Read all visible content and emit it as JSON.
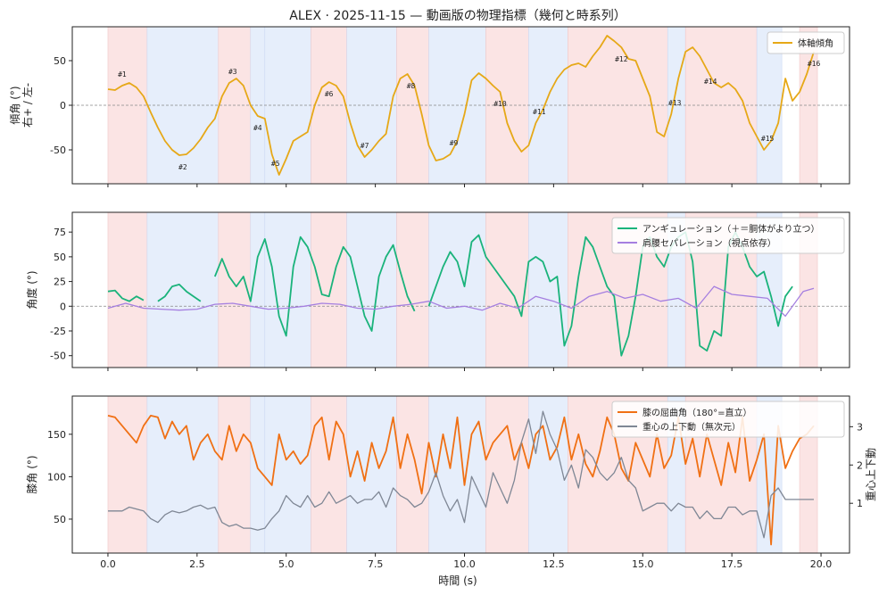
{
  "title": "ALEX · 2025-11-15 — 動画版の物理指標（幾何と時系列）",
  "xlabel": "時間 (s)",
  "colors": {
    "tilt": "#e6a817",
    "angulation": "#1ab37b",
    "separation": "#a57fe0",
    "knee": "#f07014",
    "com": "#7f8795",
    "zero": "#888888",
    "band_red": "#fbe4e4",
    "band_blue": "#e6eefb"
  },
  "chart_data": [
    {
      "type": "line",
      "ylabel": "傾角 (°)\n右+ / 左-",
      "ylim": [
        -88,
        88
      ],
      "yticks": [
        -50,
        0,
        50
      ],
      "series": [
        {
          "name": "体軸傾角",
          "x": [
            0.0,
            0.2,
            0.4,
            0.6,
            0.8,
            1.0,
            1.2,
            1.4,
            1.6,
            1.8,
            2.0,
            2.2,
            2.4,
            2.6,
            2.8,
            3.0,
            3.2,
            3.4,
            3.6,
            3.8,
            4.0,
            4.2,
            4.4,
            4.6,
            4.8,
            5.0,
            5.2,
            5.4,
            5.6,
            5.8,
            6.0,
            6.2,
            6.4,
            6.6,
            6.8,
            7.0,
            7.2,
            7.4,
            7.6,
            7.8,
            8.0,
            8.2,
            8.4,
            8.6,
            8.8,
            9.0,
            9.2,
            9.4,
            9.6,
            9.8,
            10.0,
            10.2,
            10.4,
            10.6,
            10.8,
            11.0,
            11.2,
            11.4,
            11.6,
            11.8,
            12.0,
            12.2,
            12.4,
            12.6,
            12.8,
            13.0,
            13.2,
            13.4,
            13.6,
            13.8,
            14.0,
            14.2,
            14.4,
            14.6,
            14.8,
            15.0,
            15.2,
            15.4,
            15.6,
            15.8,
            16.0,
            16.2,
            16.4,
            16.6,
            16.8,
            17.0,
            17.2,
            17.4,
            17.6,
            17.8,
            18.0,
            18.2,
            18.4,
            18.6,
            18.8,
            19.0,
            19.2,
            19.4,
            19.6,
            19.8
          ],
          "y": [
            18,
            17,
            22,
            25,
            20,
            10,
            -8,
            -25,
            -40,
            -50,
            -56,
            -55,
            -48,
            -38,
            -25,
            -15,
            10,
            25,
            30,
            22,
            0,
            -12,
            -15,
            -55,
            -78,
            -60,
            -40,
            -35,
            -30,
            0,
            20,
            26,
            22,
            10,
            -20,
            -45,
            -58,
            -50,
            -40,
            -32,
            10,
            30,
            35,
            22,
            -10,
            -45,
            -62,
            -60,
            -55,
            -40,
            -10,
            28,
            36,
            30,
            22,
            15,
            -20,
            -40,
            -52,
            -45,
            -20,
            -5,
            15,
            30,
            40,
            45,
            47,
            43,
            55,
            65,
            78,
            72,
            65,
            52,
            50,
            30,
            10,
            -30,
            -35,
            -10,
            30,
            60,
            65,
            55,
            40,
            25,
            20,
            25,
            18,
            5,
            -20,
            -35,
            -50,
            -40,
            -20,
            30,
            5,
            15,
            35,
            60
          ]
        },
        {
          "name": "",
          "x": [
            0,
            20
          ],
          "y": [
            0,
            0
          ]
        }
      ],
      "legend": "top-right",
      "annotations": [
        "#1",
        "#2",
        "#3",
        "#4",
        "#5",
        "#6",
        "#7",
        "#8",
        "#9",
        "#10",
        "#11",
        "#12",
        "#13",
        "#14",
        "#15",
        "#16"
      ]
    },
    {
      "type": "line",
      "ylabel": "角度 (°)",
      "ylim": [
        -62,
        95
      ],
      "yticks": [
        -50,
        -25,
        0,
        25,
        50,
        75
      ],
      "series": [
        {
          "name": "アンギュレーション（＋＝胴体がより立つ）",
          "x": [
            0.0,
            0.2,
            0.4,
            0.6,
            0.8,
            1.0,
            1.2,
            1.4,
            1.6,
            1.8,
            2.0,
            2.2,
            2.4,
            2.6,
            2.8,
            3.0,
            3.2,
            3.4,
            3.6,
            3.8,
            4.0,
            4.2,
            4.4,
            4.6,
            4.8,
            5.0,
            5.2,
            5.4,
            5.6,
            5.8,
            6.0,
            6.2,
            6.4,
            6.6,
            6.8,
            7.0,
            7.2,
            7.4,
            7.6,
            7.8,
            8.0,
            8.2,
            8.4,
            8.6,
            8.8,
            9.0,
            9.2,
            9.4,
            9.6,
            9.8,
            10.0,
            10.2,
            10.4,
            10.6,
            10.8,
            11.0,
            11.2,
            11.4,
            11.6,
            11.8,
            12.0,
            12.2,
            12.4,
            12.6,
            12.8,
            13.0,
            13.2,
            13.4,
            13.6,
            13.8,
            14.0,
            14.2,
            14.4,
            14.6,
            14.8,
            15.0,
            15.2,
            15.4,
            15.6,
            15.8,
            16.0,
            16.2,
            16.4,
            16.6,
            16.8,
            17.0,
            17.2,
            17.4,
            17.6,
            17.8,
            18.0,
            18.2,
            18.4,
            18.6,
            18.8,
            19.0,
            19.2,
            19.4,
            19.6,
            19.8
          ],
          "y": [
            15,
            16,
            8,
            5,
            10,
            6,
            null,
            5,
            10,
            20,
            22,
            15,
            10,
            5,
            null,
            30,
            48,
            30,
            20,
            30,
            5,
            50,
            68,
            40,
            -10,
            -30,
            40,
            70,
            60,
            40,
            12,
            10,
            40,
            60,
            50,
            20,
            -10,
            -25,
            30,
            50,
            62,
            35,
            10,
            -5,
            null,
            0,
            20,
            40,
            55,
            45,
            20,
            65,
            72,
            50,
            40,
            30,
            20,
            10,
            -10,
            45,
            50,
            45,
            25,
            30,
            -40,
            -20,
            30,
            70,
            60,
            40,
            20,
            10,
            -50,
            -30,
            10,
            60,
            70,
            50,
            40,
            60,
            70,
            75,
            45,
            -40,
            -45,
            -25,
            -30,
            60,
            75,
            60,
            40,
            30,
            35,
            10,
            -20,
            10,
            20,
            null,
            null,
            null
          ]
        },
        {
          "name": "肩腰セパレーション（視点依存）",
          "x": [
            0.0,
            0.5,
            1.0,
            1.5,
            2.0,
            2.5,
            3.0,
            3.5,
            4.0,
            4.5,
            5.0,
            5.5,
            6.0,
            6.5,
            7.0,
            7.5,
            8.0,
            8.5,
            9.0,
            9.5,
            10.0,
            10.5,
            11.0,
            11.5,
            12.0,
            12.5,
            13.0,
            13.5,
            14.0,
            14.5,
            15.0,
            15.5,
            16.0,
            16.5,
            17.0,
            17.5,
            18.0,
            18.5,
            19.0,
            19.5,
            19.8
          ],
          "y": [
            -2,
            3,
            -2,
            -3,
            -4,
            -3,
            2,
            3,
            0,
            -3,
            -2,
            0,
            3,
            2,
            -2,
            -3,
            0,
            2,
            5,
            -2,
            0,
            -4,
            3,
            -2,
            10,
            5,
            -2,
            10,
            15,
            8,
            12,
            5,
            8,
            -2,
            20,
            12,
            10,
            8,
            -10,
            15,
            18
          ]
        },
        {
          "name": "",
          "x": [
            0,
            20
          ],
          "y": [
            0,
            0
          ]
        }
      ],
      "legend": "top-right"
    },
    {
      "type": "line",
      "ylabel": "膝角 (°)",
      "ylabel_right": "重心上下動",
      "ylim": [
        10,
        195
      ],
      "yticks": [
        50,
        100,
        150
      ],
      "ylim_right": [
        -0.3,
        3.8
      ],
      "yticks_right": [
        1,
        2,
        3
      ],
      "series": [
        {
          "name": "膝の屈曲角（180°=直立）",
          "axis": "left",
          "x": [
            0.0,
            0.2,
            0.4,
            0.6,
            0.8,
            1.0,
            1.2,
            1.4,
            1.6,
            1.8,
            2.0,
            2.2,
            2.4,
            2.6,
            2.8,
            3.0,
            3.2,
            3.4,
            3.6,
            3.8,
            4.0,
            4.2,
            4.4,
            4.6,
            4.8,
            5.0,
            5.2,
            5.4,
            5.6,
            5.8,
            6.0,
            6.2,
            6.4,
            6.6,
            6.8,
            7.0,
            7.2,
            7.4,
            7.6,
            7.8,
            8.0,
            8.2,
            8.4,
            8.6,
            8.8,
            9.0,
            9.2,
            9.4,
            9.6,
            9.8,
            10.0,
            10.2,
            10.4,
            10.6,
            10.8,
            11.0,
            11.2,
            11.4,
            11.6,
            11.8,
            12.0,
            12.2,
            12.4,
            12.6,
            12.8,
            13.0,
            13.2,
            13.4,
            13.6,
            13.8,
            14.0,
            14.2,
            14.4,
            14.6,
            14.8,
            15.0,
            15.2,
            15.4,
            15.6,
            15.8,
            16.0,
            16.2,
            16.4,
            16.6,
            16.8,
            17.0,
            17.2,
            17.4,
            17.6,
            17.8,
            18.0,
            18.2,
            18.4,
            18.6,
            18.8,
            19.0,
            19.2,
            19.4,
            19.6,
            19.8
          ],
          "y": [
            172,
            170,
            160,
            150,
            140,
            160,
            172,
            170,
            145,
            165,
            150,
            160,
            120,
            140,
            150,
            130,
            120,
            160,
            130,
            150,
            140,
            110,
            100,
            90,
            150,
            120,
            130,
            115,
            125,
            160,
            170,
            120,
            165,
            150,
            100,
            130,
            95,
            140,
            110,
            130,
            170,
            110,
            150,
            120,
            80,
            140,
            100,
            150,
            110,
            170,
            90,
            150,
            165,
            120,
            140,
            150,
            160,
            120,
            140,
            110,
            150,
            160,
            120,
            135,
            170,
            120,
            150,
            115,
            100,
            130,
            170,
            150,
            110,
            95,
            140,
            120,
            100,
            150,
            110,
            125,
            170,
            115,
            145,
            100,
            150,
            120,
            90,
            140,
            105,
            170,
            95,
            120,
            150,
            20,
            160,
            110,
            130,
            145,
            150,
            160
          ]
        },
        {
          "name": "重心の上下動（無次元）",
          "axis": "right",
          "x": [
            0.0,
            0.2,
            0.4,
            0.6,
            0.8,
            1.0,
            1.2,
            1.4,
            1.6,
            1.8,
            2.0,
            2.2,
            2.4,
            2.6,
            2.8,
            3.0,
            3.2,
            3.4,
            3.6,
            3.8,
            4.0,
            4.2,
            4.4,
            4.6,
            4.8,
            5.0,
            5.2,
            5.4,
            5.6,
            5.8,
            6.0,
            6.2,
            6.4,
            6.6,
            6.8,
            7.0,
            7.2,
            7.4,
            7.6,
            7.8,
            8.0,
            8.2,
            8.4,
            8.6,
            8.8,
            9.0,
            9.2,
            9.4,
            9.6,
            9.8,
            10.0,
            10.2,
            10.4,
            10.6,
            10.8,
            11.0,
            11.2,
            11.4,
            11.6,
            11.8,
            12.0,
            12.2,
            12.4,
            12.6,
            12.8,
            13.0,
            13.2,
            13.4,
            13.6,
            13.8,
            14.0,
            14.2,
            14.4,
            14.6,
            14.8,
            15.0,
            15.2,
            15.4,
            15.6,
            15.8,
            16.0,
            16.2,
            16.4,
            16.6,
            16.8,
            17.0,
            17.2,
            17.4,
            17.6,
            17.8,
            18.0,
            18.2,
            18.4,
            18.6,
            18.8,
            19.0,
            19.2,
            19.4,
            19.6,
            19.8
          ],
          "y": [
            0.8,
            0.8,
            0.8,
            0.9,
            0.85,
            0.8,
            0.6,
            0.5,
            0.7,
            0.8,
            0.75,
            0.8,
            0.9,
            0.95,
            0.85,
            0.9,
            0.5,
            0.4,
            0.45,
            0.35,
            0.35,
            0.3,
            0.35,
            0.6,
            0.8,
            1.2,
            1.0,
            0.9,
            1.2,
            0.9,
            1.0,
            1.3,
            1.0,
            1.1,
            1.2,
            1.0,
            1.1,
            1.1,
            1.3,
            0.9,
            1.4,
            1.2,
            1.1,
            0.9,
            1.0,
            1.3,
            1.8,
            1.2,
            0.8,
            1.1,
            0.5,
            1.7,
            1.3,
            0.9,
            1.8,
            1.4,
            1.0,
            1.6,
            2.6,
            3.2,
            2.3,
            3.4,
            2.8,
            2.4,
            1.6,
            2.0,
            1.4,
            2.4,
            2.2,
            1.8,
            1.6,
            1.8,
            2.2,
            1.6,
            1.4,
            0.8,
            0.9,
            1.0,
            1.0,
            0.8,
            1.0,
            0.9,
            0.9,
            0.6,
            0.8,
            0.6,
            0.6,
            0.9,
            0.9,
            0.7,
            0.8,
            0.8,
            0.1,
            1.2,
            1.4,
            1.1,
            1.1,
            1.1,
            1.1,
            1.1
          ]
        }
      ],
      "legend": "top-right"
    }
  ],
  "shaded_intervals": {
    "x_start": [
      0.0,
      1.1,
      3.1,
      4.0,
      4.4,
      5.7,
      6.7,
      8.1,
      9.0,
      10.6,
      11.8,
      12.9,
      15.7,
      16.2,
      18.2,
      18.9,
      19.4
    ],
    "x_end": [
      1.1,
      3.1,
      4.0,
      4.4,
      5.7,
      6.7,
      8.1,
      9.0,
      10.6,
      11.8,
      12.9,
      15.7,
      16.2,
      18.2,
      18.9,
      19.4,
      19.9
    ],
    "kind": [
      "red",
      "blue",
      "red",
      "blue",
      "blue",
      "red",
      "blue",
      "red",
      "blue",
      "red",
      "blue",
      "red",
      "blue",
      "red",
      "blue",
      "white",
      "red"
    ]
  },
  "xlim": [
    -1,
    20.8
  ],
  "xticks": [
    0.0,
    2.5,
    5.0,
    7.5,
    10.0,
    12.5,
    15.0,
    17.5,
    20.0
  ],
  "xtick_labels": [
    "0.0",
    "2.5",
    "5.0",
    "7.5",
    "10.0",
    "12.5",
    "15.0",
    "17.5",
    "20.0"
  ]
}
